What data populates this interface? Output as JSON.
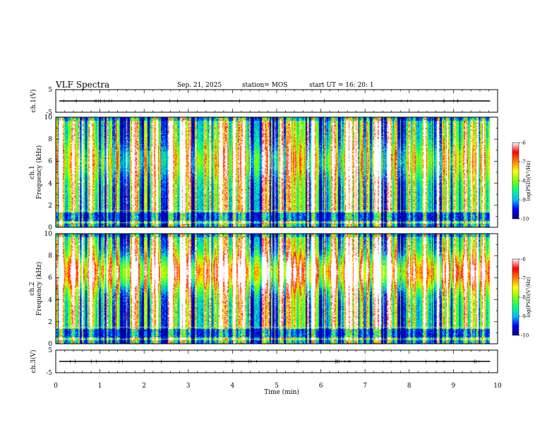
{
  "header": {
    "title": "VLF Spectra",
    "date": "Sep. 21, 2025",
    "station": "station= MOS",
    "start_ut": "start  UT =   16: 20: 1"
  },
  "chart_data": {
    "type": "heatmap",
    "xlabel": "Time  (min)",
    "xlim": [
      0,
      10
    ],
    "x_ticks": [
      "0",
      "1",
      "2",
      "3",
      "4",
      "5",
      "6",
      "7",
      "8",
      "9",
      "10"
    ],
    "data_end_min": 9.83,
    "panels": [
      {
        "name": "ch1-waveform",
        "kind": "waveform",
        "ylabel": "ch.1(V)",
        "ylim": [
          -5,
          5
        ],
        "y_ticks": [
          "5",
          "-5"
        ],
        "baseline_v": 0
      },
      {
        "name": "ch1-spectrogram",
        "kind": "spectrogram",
        "ylabel_line1": "ch.1",
        "ylabel_line2": "Frequency (kHz)",
        "ylim_khz": [
          0,
          10
        ],
        "y_ticks": [
          "0",
          "2",
          "4",
          "6",
          "8",
          "10"
        ],
        "band_center_khz": 6,
        "band_strength": 0.25
      },
      {
        "name": "ch2-spectrogram",
        "kind": "spectrogram",
        "ylabel_line1": "ch.2",
        "ylabel_line2": "Frequency (kHz)",
        "ylim_khz": [
          0,
          10
        ],
        "y_ticks": [
          "0",
          "2",
          "4",
          "6",
          "8",
          "10"
        ],
        "band_center_khz": 6.5,
        "band_strength": 0.55
      },
      {
        "name": "ch3-waveform",
        "kind": "waveform",
        "ylabel": "ch.3(V)",
        "ylim": [
          -5,
          5
        ],
        "y_ticks": [
          "5",
          "-5"
        ],
        "baseline_v": 0
      }
    ],
    "colorbar": {
      "label": "log(PSD)(V²/Hz)",
      "range": [
        -10,
        -6
      ],
      "ticks": [
        "-6",
        "-7",
        "-8",
        "-9",
        "-10"
      ],
      "colors": [
        "#000080",
        "#0000ff",
        "#00c0ff",
        "#00ff80",
        "#80ff00",
        "#ffff00",
        "#ff8000",
        "#ff0000",
        "#ffffff"
      ]
    }
  }
}
